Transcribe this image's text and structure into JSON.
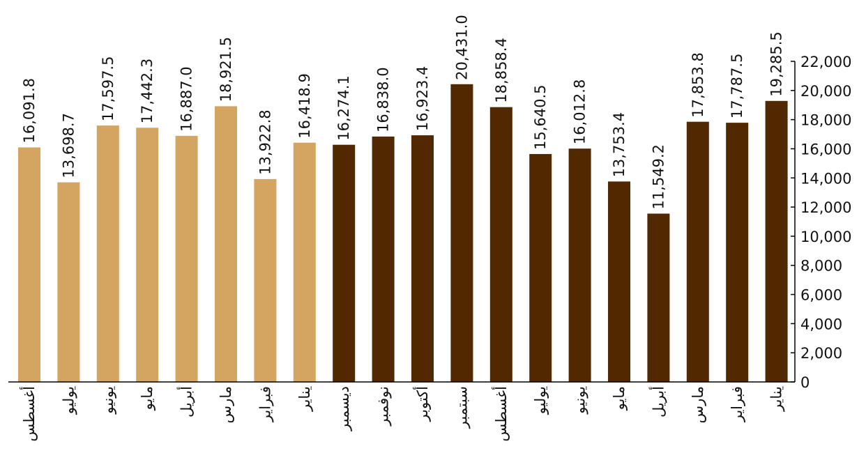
{
  "chart_data": {
    "type": "bar",
    "categories": [
      "أغسطس",
      "يوليو",
      "يونيو",
      "مايو",
      "أبريل",
      "مارس",
      "فبراير",
      "يناير",
      "ديسمبر",
      "نوفمبر",
      "أكتوبر",
      "سبتمبر",
      "أغسطس",
      "يوليو",
      "يونيو",
      "مايو",
      "أبريل",
      "مارس",
      "فبراير",
      "يناير"
    ],
    "values": [
      16091.8,
      13698.7,
      17597.5,
      17442.3,
      16887.0,
      18921.5,
      13922.8,
      16418.9,
      16274.1,
      16838.0,
      16923.4,
      20431.0,
      18858.4,
      15640.5,
      16012.8,
      13753.4,
      11549.2,
      17853.8,
      17787.5,
      19285.5
    ],
    "value_labels": [
      "16,091.8",
      "13,698.7",
      "17,597.5",
      "17,442.3",
      "16,887.0",
      "18,921.5",
      "13,922.8",
      "16,418.9",
      "16,274.1",
      "16,838.0",
      "16,923.4",
      "20,431.0",
      "18,858.4",
      "15,640.5",
      "16,012.8",
      "13,753.4",
      "11,549.2",
      "17,853.8",
      "17,787.5",
      "19,285.5"
    ],
    "bar_colors": [
      "#d4a461",
      "#d4a461",
      "#d4a461",
      "#d4a461",
      "#d4a461",
      "#d4a461",
      "#d4a461",
      "#d4a461",
      "#522800",
      "#522800",
      "#522800",
      "#522800",
      "#522800",
      "#522800",
      "#522800",
      "#522800",
      "#522800",
      "#522800",
      "#522800",
      "#522800"
    ],
    "y_ticks": [
      "0",
      "2,000",
      "4,000",
      "6,000",
      "8,000",
      "10,000",
      "12,000",
      "14,000",
      "16,000",
      "18,000",
      "20,000",
      "22,000"
    ],
    "ylim": [
      0,
      22000
    ],
    "y_axis_position": "right",
    "grid": false,
    "title": "",
    "xlabel": "",
    "ylabel": ""
  }
}
